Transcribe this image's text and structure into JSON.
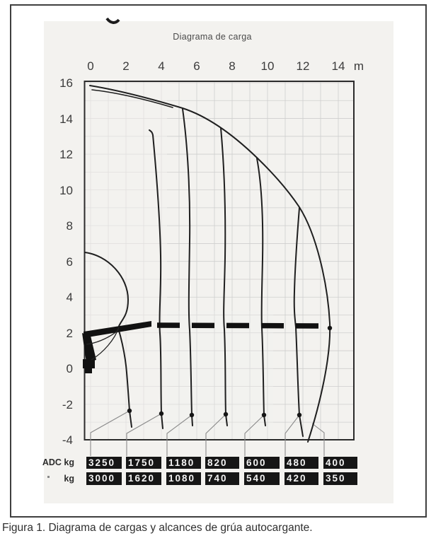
{
  "figure": {
    "caption": "Figura 1. Diagrama de cargas y alcances de grúa autocargante."
  },
  "chart_data": {
    "type": "line",
    "title": "Diagrama de carga",
    "x_unit": "m",
    "x_ticks": [
      0,
      2,
      4,
      6,
      8,
      10,
      12,
      14
    ],
    "y_ticks": [
      16,
      14,
      12,
      10,
      8,
      6,
      4,
      2,
      0,
      -2,
      -4
    ],
    "x_range_m": [
      -0.4,
      14.9
    ],
    "y_range_m": [
      -4,
      16
    ],
    "grid": true,
    "legend_position": "none",
    "envelope_reach_curve_m": [
      [
        0,
        15.8
      ],
      [
        2,
        15.2
      ],
      [
        5.2,
        14.6
      ],
      [
        7.4,
        13.5
      ],
      [
        9.4,
        11.8
      ],
      [
        11.8,
        9.0
      ],
      [
        13.4,
        4.4
      ],
      [
        13.5,
        2.4
      ],
      [
        13.0,
        -1.5
      ],
      [
        12.3,
        -4.0
      ]
    ],
    "column_bulge_curve_m": [
      [
        -0.3,
        6.4
      ],
      [
        2.5,
        4.1
      ],
      [
        1.9,
        2.3
      ],
      [
        2.2,
        -2.4
      ]
    ],
    "boom_stop_curves_x_m": [
      2.2,
      4.0,
      5.6,
      7.6,
      9.7,
      11.7,
      13.4
    ],
    "stabilizer_dashed_line_y_m": 2.45,
    "load_table": {
      "row_labels": [
        "ADC kg",
        "kg"
      ],
      "adc_kg": [
        3250,
        1750,
        1180,
        820,
        600,
        480,
        400
      ],
      "kg": [
        3000,
        1620,
        1080,
        740,
        540,
        420,
        350
      ]
    }
  }
}
